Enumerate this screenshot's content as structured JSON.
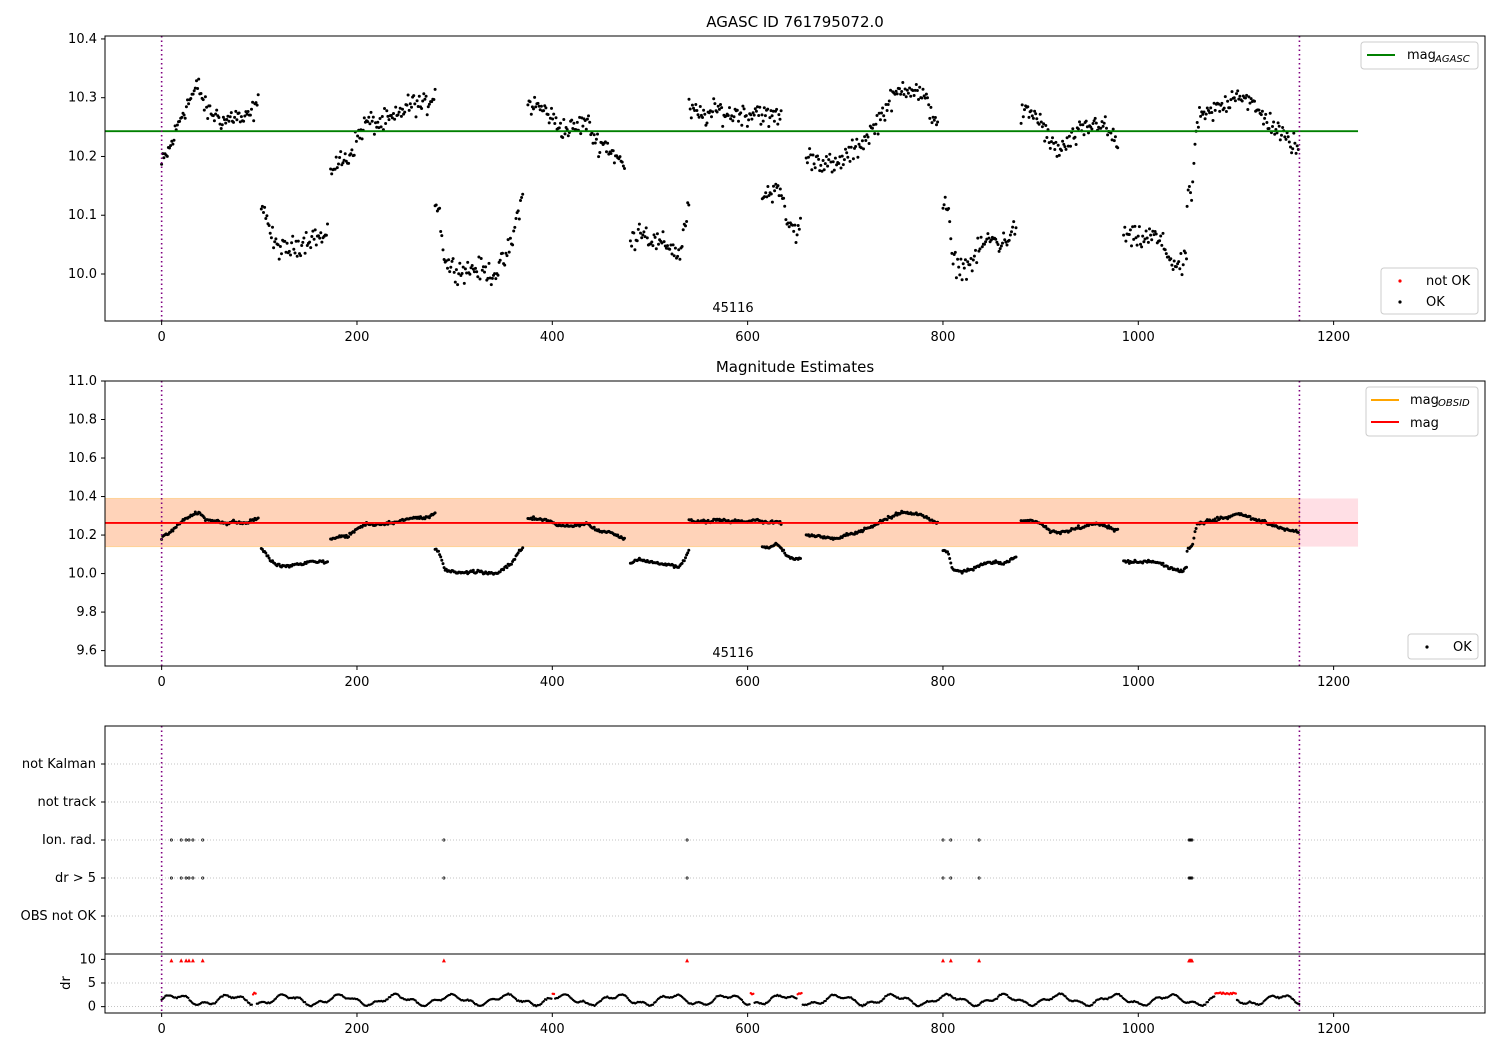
{
  "chart_data": [
    {
      "type": "scatter",
      "title": "AGASC ID 761795072.0",
      "xlim": [
        -58,
        1355
      ],
      "ylim": [
        9.92,
        10.405
      ],
      "xticks": [
        0,
        200,
        400,
        600,
        800,
        1000,
        1200
      ],
      "yticks": [
        10.0,
        10.1,
        10.2,
        10.3,
        10.4
      ],
      "ytick_labels": [
        "10.0",
        "10.1",
        "10.2",
        "10.3",
        "10.4"
      ],
      "obsid_label": "45116",
      "obsid_label_x": 585,
      "vlines": [
        0,
        1165
      ],
      "hline": {
        "name": "mag_AGASC",
        "y": 10.243,
        "x_range": [
          -58,
          1225
        ],
        "color": "#008000"
      },
      "legend_top": [
        {
          "label": "mag",
          "sub": "AGASC",
          "color": "#008000"
        }
      ],
      "legend_bottom": [
        {
          "label": "not OK",
          "color": "#ff0000"
        },
        {
          "label": "OK",
          "color": "#000000"
        }
      ],
      "series": [
        {
          "x": [
            0,
            10,
            20,
            30,
            38,
            45,
            55,
            65,
            75,
            85,
            95,
            100
          ],
          "y": [
            10.185,
            10.22,
            10.27,
            10.3,
            10.32,
            10.28,
            10.27,
            10.26,
            10.27,
            10.26,
            10.28,
            10.29
          ]
        },
        {
          "x": [
            102,
            107,
            115,
            125,
            135,
            145,
            155,
            165,
            170
          ],
          "y": [
            10.13,
            10.1,
            10.05,
            10.04,
            10.045,
            10.055,
            10.065,
            10.06,
            10.06
          ]
        },
        {
          "x": [
            173,
            180,
            190,
            200,
            210,
            220,
            230,
            240,
            250,
            260,
            270,
            280
          ],
          "y": [
            10.18,
            10.19,
            10.195,
            10.23,
            10.26,
            10.255,
            10.26,
            10.265,
            10.285,
            10.29,
            10.285,
            10.31
          ]
        },
        {
          "x": [
            280,
            285,
            290,
            300,
            310,
            320,
            330,
            340,
            350,
            360,
            365,
            370
          ],
          "y": [
            10.125,
            10.1,
            10.02,
            10.01,
            10.005,
            10.01,
            10.005,
            10.0,
            10.02,
            10.06,
            10.11,
            10.13
          ]
        },
        {
          "x": [
            375,
            385,
            395,
            405,
            415,
            425,
            435,
            445,
            455,
            465,
            475
          ],
          "y": [
            10.29,
            10.285,
            10.275,
            10.255,
            10.245,
            10.25,
            10.26,
            10.225,
            10.22,
            10.2,
            10.18
          ]
        },
        {
          "x": [
            480,
            490,
            500,
            510,
            520,
            530,
            540
          ],
          "y": [
            10.05,
            10.08,
            10.06,
            10.05,
            10.05,
            10.03,
            10.12
          ]
        },
        {
          "x": [
            540,
            550,
            560,
            570,
            580,
            590,
            600,
            610,
            620,
            630,
            635
          ],
          "y": [
            10.28,
            10.27,
            10.27,
            10.28,
            10.27,
            10.275,
            10.27,
            10.28,
            10.265,
            10.27,
            10.26
          ]
        },
        {
          "x": [
            615,
            620,
            625,
            630,
            640,
            645,
            650,
            655
          ],
          "y": [
            10.14,
            10.135,
            10.14,
            10.16,
            10.09,
            10.08,
            10.07,
            10.085
          ]
        },
        {
          "x": [
            660,
            670,
            680,
            690,
            700,
            710,
            720,
            730,
            740,
            750,
            760,
            770,
            780,
            790,
            795
          ],
          "y": [
            10.2,
            10.195,
            10.19,
            10.18,
            10.2,
            10.21,
            10.23,
            10.25,
            10.28,
            10.3,
            10.32,
            10.315,
            10.3,
            10.27,
            10.26
          ]
        },
        {
          "x": [
            800,
            805,
            810,
            820,
            830,
            840,
            850,
            860,
            870,
            875
          ],
          "y": [
            10.12,
            10.11,
            10.02,
            10.01,
            10.02,
            10.05,
            10.06,
            10.05,
            10.07,
            10.08
          ]
        },
        {
          "x": [
            880,
            890,
            900,
            910,
            920,
            930,
            940,
            950,
            960,
            970,
            980
          ],
          "y": [
            10.27,
            10.275,
            10.26,
            10.22,
            10.21,
            10.225,
            10.24,
            10.25,
            10.26,
            10.24,
            10.22
          ]
        },
        {
          "x": [
            985,
            995,
            1005,
            1015,
            1025,
            1035,
            1045,
            1050
          ],
          "y": [
            10.065,
            10.06,
            10.06,
            10.065,
            10.05,
            10.02,
            10.01,
            10.04
          ]
        },
        {
          "x": [
            1050,
            1055,
            1060,
            1070,
            1080,
            1090,
            1100,
            1110,
            1120,
            1130,
            1140,
            1150,
            1160,
            1165
          ],
          "y": [
            10.12,
            10.14,
            10.26,
            10.27,
            10.28,
            10.29,
            10.31,
            10.3,
            10.28,
            10.265,
            10.25,
            10.23,
            10.22,
            10.21
          ]
        }
      ]
    },
    {
      "type": "scatter",
      "title": "Magnitude Estimates",
      "xlim": [
        -58,
        1355
      ],
      "ylim": [
        9.52,
        11.0
      ],
      "xticks": [
        0,
        200,
        400,
        600,
        800,
        1000,
        1200
      ],
      "yticks": [
        9.6,
        9.8,
        10.0,
        10.2,
        10.4,
        10.6,
        10.8,
        11.0
      ],
      "ytick_labels": [
        "9.6",
        "9.8",
        "10.0",
        "10.2",
        "10.4",
        "10.6",
        "10.8",
        "11.0"
      ],
      "obsid_label": "45116",
      "obsid_label_x": 585,
      "vlines": [
        0,
        1165
      ],
      "mag_line": {
        "name": "mag",
        "y": 10.263,
        "x_range": [
          -58,
          1225
        ],
        "color": "#ff0000"
      },
      "mag_band": {
        "y_low": 10.14,
        "y_high": 10.39,
        "x_range": [
          -58,
          1225
        ]
      },
      "obsid_band": {
        "y_low": 10.14,
        "y_high": 10.39,
        "x_range": [
          -58,
          1165
        ]
      },
      "legend_top": [
        {
          "label": "mag",
          "sub": "OBSID",
          "color": "#ffa500"
        },
        {
          "label": "mag",
          "sub": "",
          "color": "#ff0000"
        }
      ],
      "legend_bottom": [
        {
          "label": "OK",
          "color": "#000000"
        }
      ]
    },
    {
      "type": "scatter",
      "title": "",
      "xlim": [
        -58,
        1355
      ],
      "xticks": [
        0,
        200,
        400,
        600,
        800,
        1000,
        1200
      ],
      "flag_rows": [
        "not Kalman",
        "not track",
        "Ion. rad.",
        "dr > 5",
        "OBS not OK"
      ],
      "flag_points": {
        "Ion. rad.": [
          10,
          20,
          25,
          28,
          32,
          42,
          289,
          538,
          800,
          808,
          837,
          1052,
          1053,
          1054,
          1055
        ],
        "dr > 5": [
          10,
          20,
          25,
          28,
          32,
          42,
          289,
          538,
          800,
          808,
          837,
          1052,
          1053,
          1054,
          1055
        ]
      },
      "dr": {
        "ylabel": "dr",
        "ylim": [
          -0.5,
          10.5
        ],
        "yticks": [
          0,
          5,
          10
        ],
        "ytick_labels": [
          "0",
          "5",
          "10"
        ],
        "clipped_points_x": [
          10,
          20,
          25,
          28,
          32,
          42,
          289,
          538,
          800,
          808,
          837,
          1052,
          1053,
          1054,
          1055
        ],
        "red_segments": [
          [
            93,
            97
          ],
          [
            400,
            403
          ],
          [
            602,
            607
          ],
          [
            650,
            656
          ],
          [
            1078,
            1100
          ]
        ]
      },
      "vlines": [
        0,
        1165
      ]
    }
  ]
}
